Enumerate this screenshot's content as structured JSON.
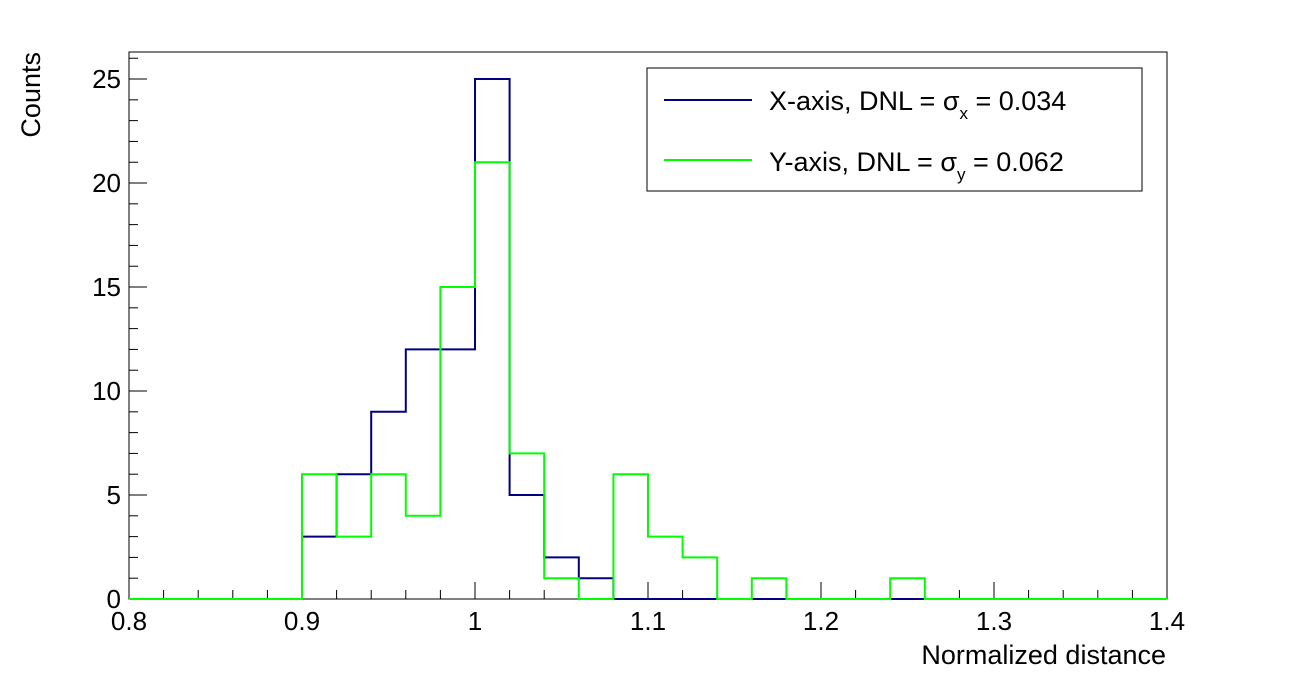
{
  "chart_data": {
    "type": "histogram",
    "xlabel": "Normalized distance",
    "ylabel": "Counts",
    "xlim": [
      0.8,
      1.4
    ],
    "ylim": [
      0,
      26.3
    ],
    "x_ticks": [
      "0.8",
      "0.9",
      "1",
      "1.1",
      "1.2",
      "1.3",
      "1.4"
    ],
    "y_ticks": [
      "0",
      "5",
      "10",
      "15",
      "20",
      "25"
    ],
    "bin_edges": [
      0.8,
      0.82,
      0.84,
      0.86,
      0.88,
      0.9,
      0.92,
      0.94,
      0.96,
      0.98,
      1.0,
      1.02,
      1.04,
      1.06,
      1.08,
      1.1,
      1.12,
      1.14,
      1.16,
      1.18,
      1.2,
      1.22,
      1.24,
      1.26,
      1.28,
      1.3,
      1.32,
      1.34,
      1.36,
      1.38,
      1.4
    ],
    "series": [
      {
        "name": "X-axis, DNL = σx = 0.034",
        "legend": {
          "prefix": "X-axis, DNL = ",
          "sigma": "σ",
          "sub": "x",
          "suffix": " = 0.034"
        },
        "color": "#000080",
        "values": [
          0,
          0,
          0,
          0,
          0,
          3,
          6,
          9,
          12,
          12,
          25,
          5,
          2,
          1,
          0,
          0,
          0,
          0,
          0,
          0,
          0,
          0,
          0,
          0,
          0,
          0,
          0,
          0,
          0,
          0
        ]
      },
      {
        "name": "Y-axis, DNL = σy = 0.062",
        "legend": {
          "prefix": "Y-axis, DNL = ",
          "sigma": "σ",
          "sub": "y",
          "suffix": " = 0.062"
        },
        "color": "#00ff00",
        "values": [
          0,
          0,
          0,
          0,
          0,
          6,
          3,
          6,
          4,
          15,
          21,
          7,
          1,
          0,
          6,
          3,
          2,
          0,
          1,
          0,
          0,
          0,
          1,
          0,
          0,
          0,
          0,
          0,
          0,
          0
        ]
      }
    ],
    "legend_position": "top-right",
    "grid": false
  }
}
